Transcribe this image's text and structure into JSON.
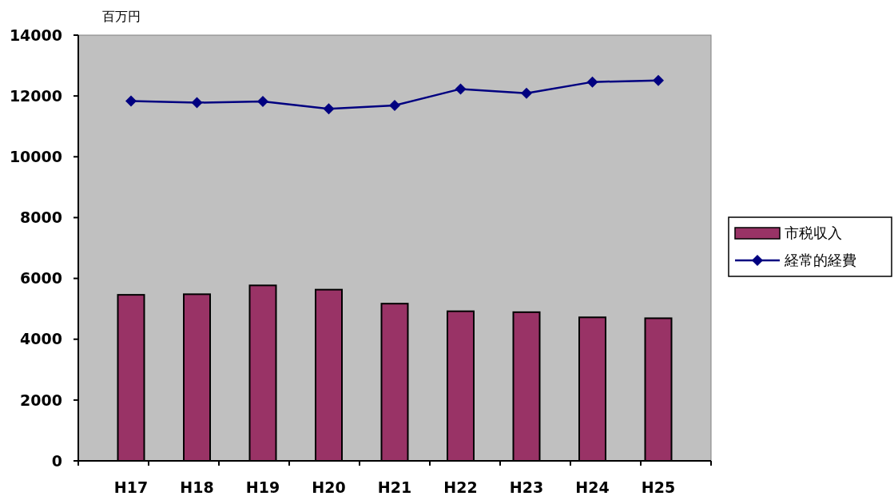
{
  "chart_data": {
    "type": "bar",
    "ylabel": "百万円",
    "categories": [
      "H17",
      "H18",
      "H19",
      "H20",
      "H21",
      "H22",
      "H23",
      "H24",
      "H25"
    ],
    "series": [
      {
        "name": "市税収入",
        "color": "#993366",
        "values": [
          5460,
          5480,
          5770,
          5630,
          5170,
          4920,
          4890,
          4720,
          4690
        ]
      },
      {
        "name": "経常的経費",
        "type": "line",
        "color": "#000080",
        "values": [
          11830,
          11780,
          11820,
          11580,
          11690,
          12230,
          12090,
          12460,
          12510
        ]
      }
    ],
    "ylim": [
      0,
      14000
    ],
    "yticks": [
      0,
      2000,
      4000,
      6000,
      8000,
      10000,
      12000,
      14000
    ],
    "grid": false,
    "legend": "right",
    "marker": "diamond"
  }
}
